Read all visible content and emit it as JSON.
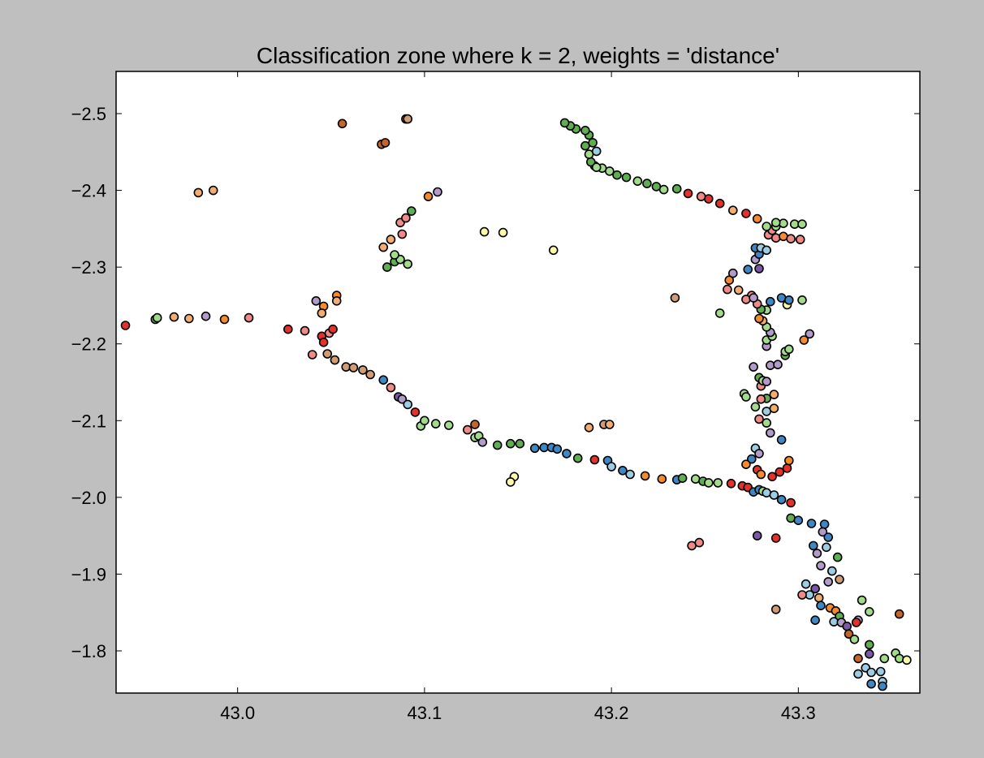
{
  "chart_data": {
    "type": "scatter",
    "title": "Classification zone where k = 2, weights = 'distance'",
    "xlabel": "",
    "ylabel": "",
    "xlim": [
      42.935,
      43.365
    ],
    "ylim": [
      -2.555,
      -1.745
    ],
    "y_inverted": true,
    "grid": false,
    "x_ticks": [
      "43.0",
      "43.1",
      "43.2",
      "43.3"
    ],
    "x_tick_values": [
      43.0,
      43.1,
      43.2,
      43.3
    ],
    "y_ticks": [
      "−2.5",
      "−2.4",
      "−2.3",
      "−2.2",
      "−2.1",
      "−2.0",
      "−1.9",
      "−1.8"
    ],
    "y_tick_values": [
      -2.5,
      -2.4,
      -2.3,
      -2.2,
      -2.1,
      -2.0,
      -1.9,
      -1.8
    ],
    "colors": {
      "r": "#e4312c",
      "o": "#f58b2e",
      "br": "#c4662c",
      "pk": "#f08a88",
      "pe": "#f4ad6e",
      "y": "#fdfba8",
      "lg": "#a3db8d",
      "g": "#5fae52",
      "lb": "#9ccde3",
      "b": "#3f87c2",
      "p": "#7b58a4",
      "lp": "#b39bc9",
      "tn": "#cf9c75"
    },
    "points": [
      [
        42.94,
        -2.224,
        "r"
      ],
      [
        42.956,
        -2.232,
        "g"
      ],
      [
        42.957,
        -2.234,
        "lg"
      ],
      [
        42.966,
        -2.235,
        "pe"
      ],
      [
        42.974,
        -2.233,
        "pe"
      ],
      [
        42.983,
        -2.236,
        "lp"
      ],
      [
        42.993,
        -2.232,
        "o"
      ],
      [
        43.006,
        -2.234,
        "pk"
      ],
      [
        43.027,
        -2.219,
        "r"
      ],
      [
        43.036,
        -2.217,
        "pk"
      ],
      [
        43.045,
        -2.21,
        "r"
      ],
      [
        43.049,
        -2.214,
        "pk"
      ],
      [
        43.051,
        -2.219,
        "r"
      ],
      [
        43.046,
        -2.202,
        "r"
      ],
      [
        43.04,
        -2.186,
        "pk"
      ],
      [
        43.048,
        -2.187,
        "tn"
      ],
      [
        43.052,
        -2.179,
        "tn"
      ],
      [
        43.058,
        -2.17,
        "tn"
      ],
      [
        43.062,
        -2.169,
        "tn"
      ],
      [
        43.067,
        -2.166,
        "tn"
      ],
      [
        43.071,
        -2.16,
        "tn"
      ],
      [
        43.078,
        -2.153,
        "b"
      ],
      [
        43.082,
        -2.143,
        "pk"
      ],
      [
        43.086,
        -2.131,
        "p"
      ],
      [
        43.088,
        -2.128,
        "lp"
      ],
      [
        43.091,
        -2.121,
        "lb"
      ],
      [
        43.095,
        -2.111,
        "r"
      ],
      [
        43.098,
        -2.093,
        "lg"
      ],
      [
        43.1,
        -2.1,
        "lg"
      ],
      [
        43.106,
        -2.096,
        "lg"
      ],
      [
        43.113,
        -2.094,
        "lg"
      ],
      [
        43.123,
        -2.088,
        "pk"
      ],
      [
        43.127,
        -2.095,
        "br"
      ],
      [
        43.127,
        -2.078,
        "lg"
      ],
      [
        43.129,
        -2.08,
        "lg"
      ],
      [
        43.131,
        -2.072,
        "lp"
      ],
      [
        43.139,
        -2.068,
        "g"
      ],
      [
        43.146,
        -2.07,
        "g"
      ],
      [
        43.151,
        -2.07,
        "g"
      ],
      [
        43.159,
        -2.064,
        "b"
      ],
      [
        43.164,
        -2.065,
        "b"
      ],
      [
        43.168,
        -2.065,
        "b"
      ],
      [
        43.171,
        -2.063,
        "b"
      ],
      [
        43.176,
        -2.057,
        "b"
      ],
      [
        43.182,
        -2.051,
        "g"
      ],
      [
        43.191,
        -2.049,
        "r"
      ],
      [
        43.198,
        -2.048,
        "b"
      ],
      [
        43.2,
        -2.04,
        "lb"
      ],
      [
        43.206,
        -2.035,
        "b"
      ],
      [
        43.21,
        -2.03,
        "lb"
      ],
      [
        43.218,
        -2.028,
        "o"
      ],
      [
        43.227,
        -2.024,
        "o"
      ],
      [
        43.235,
        -2.023,
        "b"
      ],
      [
        43.238,
        -2.025,
        "g"
      ],
      [
        43.245,
        -2.024,
        "lg"
      ],
      [
        43.249,
        -2.021,
        "g"
      ],
      [
        43.252,
        -2.019,
        "lg"
      ],
      [
        43.257,
        -2.019,
        "lg"
      ],
      [
        43.264,
        -2.018,
        "r"
      ],
      [
        43.27,
        -2.015,
        "r"
      ],
      [
        43.273,
        -2.013,
        "r"
      ],
      [
        43.276,
        -2.007,
        "b"
      ],
      [
        43.279,
        -2.01,
        "b"
      ],
      [
        43.281,
        -2.008,
        "lg"
      ],
      [
        43.283,
        -2.006,
        "lb"
      ],
      [
        43.287,
        -2.003,
        "lb"
      ],
      [
        43.291,
        -1.997,
        "b"
      ],
      [
        43.296,
        -1.993,
        "r"
      ],
      [
        43.296,
        -1.973,
        "g"
      ],
      [
        43.3,
        -1.97,
        "b"
      ],
      [
        43.307,
        -1.966,
        "b"
      ],
      [
        43.314,
        -1.965,
        "b"
      ],
      [
        43.313,
        -1.955,
        "lp"
      ],
      [
        43.316,
        -1.948,
        "b"
      ],
      [
        43.308,
        -1.937,
        "b"
      ],
      [
        43.315,
        -1.935,
        "lb"
      ],
      [
        43.31,
        -1.927,
        "lp"
      ],
      [
        43.321,
        -1.922,
        "g"
      ],
      [
        43.312,
        -1.911,
        "lp"
      ],
      [
        43.318,
        -1.904,
        "lb"
      ],
      [
        43.322,
        -1.893,
        "tn"
      ],
      [
        43.316,
        -1.89,
        "lp"
      ],
      [
        43.304,
        -1.887,
        "lb"
      ],
      [
        43.309,
        -1.881,
        "p"
      ],
      [
        43.306,
        -1.873,
        "lb"
      ],
      [
        43.311,
        -1.869,
        "pe"
      ],
      [
        43.302,
        -1.873,
        "pk"
      ],
      [
        43.312,
        -1.859,
        "b"
      ],
      [
        43.317,
        -1.856,
        "o"
      ],
      [
        43.32,
        -1.852,
        "o"
      ],
      [
        43.322,
        -1.845,
        "g"
      ],
      [
        43.309,
        -1.84,
        "b"
      ],
      [
        43.319,
        -1.838,
        "lb"
      ],
      [
        43.323,
        -1.837,
        "lp"
      ],
      [
        43.326,
        -1.832,
        "p"
      ],
      [
        43.332,
        -1.84,
        "lp"
      ],
      [
        43.327,
        -1.822,
        "br"
      ],
      [
        43.33,
        -1.815,
        "lg"
      ],
      [
        43.338,
        -1.808,
        "g"
      ],
      [
        43.338,
        -1.796,
        "p"
      ],
      [
        43.332,
        -1.79,
        "br"
      ],
      [
        43.336,
        -1.778,
        "lb"
      ],
      [
        43.339,
        -1.772,
        "lb"
      ],
      [
        43.344,
        -1.773,
        "lb"
      ],
      [
        43.332,
        -1.77,
        "lb"
      ],
      [
        43.345,
        -1.76,
        "lb"
      ],
      [
        43.345,
        -1.754,
        "b"
      ],
      [
        43.339,
        -1.757,
        "b"
      ],
      [
        43.346,
        -1.79,
        "lg"
      ],
      [
        43.352,
        -1.797,
        "lg"
      ],
      [
        43.354,
        -1.79,
        "lg"
      ],
      [
        43.358,
        -1.788,
        "y"
      ],
      [
        43.354,
        -1.848,
        "br"
      ],
      [
        43.331,
        -1.837,
        "r"
      ],
      [
        43.334,
        -1.866,
        "lg"
      ],
      [
        43.338,
        -1.851,
        "lg"
      ],
      [
        43.288,
        -1.854,
        "tn"
      ],
      [
        43.243,
        -1.937,
        "pk"
      ],
      [
        43.247,
        -1.941,
        "pk"
      ],
      [
        43.278,
        -1.95,
        "p"
      ],
      [
        43.288,
        -1.947,
        "r"
      ],
      [
        43.277,
        -2.064,
        "lb"
      ],
      [
        43.275,
        -2.05,
        "b"
      ],
      [
        43.272,
        -2.043,
        "o"
      ],
      [
        43.278,
        -2.036,
        "r"
      ],
      [
        43.28,
        -2.03,
        "o"
      ],
      [
        43.286,
        -2.027,
        "r"
      ],
      [
        43.29,
        -2.033,
        "r"
      ],
      [
        43.294,
        -2.038,
        "r"
      ],
      [
        43.295,
        -2.048,
        "o"
      ],
      [
        43.279,
        -2.057,
        "lp"
      ],
      [
        43.285,
        -2.084,
        "lp"
      ],
      [
        43.291,
        -2.075,
        "b"
      ],
      [
        43.283,
        -2.097,
        "lg"
      ],
      [
        43.279,
        -2.102,
        "pk"
      ],
      [
        43.283,
        -2.112,
        "lb"
      ],
      [
        43.287,
        -2.116,
        "pe"
      ],
      [
        43.283,
        -2.129,
        "g"
      ],
      [
        43.28,
        -2.128,
        "pk"
      ],
      [
        43.28,
        -2.145,
        "pk"
      ],
      [
        43.287,
        -2.134,
        "pe"
      ],
      [
        43.271,
        -2.135,
        "lg"
      ],
      [
        43.272,
        -2.131,
        "lg"
      ],
      [
        43.277,
        -2.118,
        "lg"
      ],
      [
        43.279,
        -2.156,
        "g"
      ],
      [
        43.281,
        -2.152,
        "lg"
      ],
      [
        43.283,
        -2.151,
        "lp"
      ],
      [
        43.276,
        -2.17,
        "lp"
      ],
      [
        43.285,
        -2.172,
        "lp"
      ],
      [
        43.289,
        -2.173,
        "lp"
      ],
      [
        43.293,
        -2.185,
        "g"
      ],
      [
        43.293,
        -2.19,
        "lg"
      ],
      [
        43.295,
        -2.193,
        "lg"
      ],
      [
        43.303,
        -2.205,
        "o"
      ],
      [
        43.306,
        -2.213,
        "lp"
      ],
      [
        43.283,
        -2.197,
        "lp"
      ],
      [
        43.283,
        -2.205,
        "lg"
      ],
      [
        43.286,
        -2.21,
        "lg"
      ],
      [
        43.285,
        -2.215,
        "lp"
      ],
      [
        43.283,
        -2.222,
        "lg"
      ],
      [
        43.281,
        -2.23,
        "pe"
      ],
      [
        43.279,
        -2.233,
        "o"
      ],
      [
        43.283,
        -2.244,
        "lg"
      ],
      [
        43.28,
        -2.245,
        "g"
      ],
      [
        43.278,
        -2.252,
        "pk"
      ],
      [
        43.275,
        -2.263,
        "pk"
      ],
      [
        43.272,
        -2.258,
        "pk"
      ],
      [
        43.268,
        -2.27,
        "pe"
      ],
      [
        43.285,
        -2.255,
        "b"
      ],
      [
        43.291,
        -2.26,
        "b"
      ],
      [
        43.294,
        -2.251,
        "y"
      ],
      [
        43.302,
        -2.257,
        "lg"
      ],
      [
        43.295,
        -2.257,
        "b"
      ],
      [
        43.263,
        -2.283,
        "o"
      ],
      [
        43.265,
        -2.292,
        "lp"
      ],
      [
        43.273,
        -2.297,
        "b"
      ],
      [
        43.262,
        -2.271,
        "pk"
      ],
      [
        43.258,
        -2.24,
        "lg"
      ],
      [
        43.234,
        -2.26,
        "tn"
      ],
      [
        43.276,
        -2.26,
        "lp"
      ],
      [
        43.279,
        -2.298,
        "p"
      ],
      [
        43.277,
        -2.31,
        "lp"
      ],
      [
        43.279,
        -2.317,
        "b"
      ],
      [
        43.277,
        -2.325,
        "b"
      ],
      [
        43.28,
        -2.325,
        "lb"
      ],
      [
        43.283,
        -2.322,
        "lb"
      ],
      [
        43.284,
        -2.342,
        "pk"
      ],
      [
        43.288,
        -2.338,
        "pk"
      ],
      [
        43.292,
        -2.34,
        "o"
      ],
      [
        43.296,
        -2.337,
        "pk"
      ],
      [
        43.301,
        -2.336,
        "pk"
      ],
      [
        43.286,
        -2.348,
        "pk"
      ],
      [
        43.283,
        -2.353,
        "lg"
      ],
      [
        43.288,
        -2.353,
        "lg"
      ],
      [
        43.292,
        -2.357,
        "lg"
      ],
      [
        43.298,
        -2.356,
        "lg"
      ],
      [
        43.302,
        -2.356,
        "lg"
      ],
      [
        43.288,
        -2.358,
        "lg"
      ],
      [
        43.278,
        -2.363,
        "o"
      ],
      [
        43.272,
        -2.37,
        "r"
      ],
      [
        43.265,
        -2.374,
        "pe"
      ],
      [
        43.258,
        -2.383,
        "r"
      ],
      [
        43.252,
        -2.389,
        "r"
      ],
      [
        43.248,
        -2.392,
        "pk"
      ],
      [
        43.241,
        -2.396,
        "r"
      ],
      [
        43.235,
        -2.402,
        "g"
      ],
      [
        43.228,
        -2.401,
        "lg"
      ],
      [
        43.224,
        -2.405,
        "g"
      ],
      [
        43.219,
        -2.409,
        "g"
      ],
      [
        43.214,
        -2.412,
        "lg"
      ],
      [
        43.208,
        -2.417,
        "g"
      ],
      [
        43.203,
        -2.42,
        "g"
      ],
      [
        43.199,
        -2.425,
        "lg"
      ],
      [
        43.195,
        -2.429,
        "lg"
      ],
      [
        43.191,
        -2.432,
        "g"
      ],
      [
        43.189,
        -2.437,
        "g"
      ],
      [
        43.192,
        -2.43,
        "lg"
      ],
      [
        43.188,
        -2.447,
        "lg"
      ],
      [
        43.192,
        -2.451,
        "lb"
      ],
      [
        43.186,
        -2.458,
        "g"
      ],
      [
        43.19,
        -2.462,
        "g"
      ],
      [
        43.188,
        -2.472,
        "g"
      ],
      [
        43.186,
        -2.478,
        "g"
      ],
      [
        43.181,
        -2.48,
        "g"
      ],
      [
        43.178,
        -2.484,
        "g"
      ],
      [
        43.175,
        -2.488,
        "g"
      ],
      [
        43.08,
        -2.3,
        "g"
      ],
      [
        43.084,
        -2.307,
        "g"
      ],
      [
        43.087,
        -2.31,
        "lg"
      ],
      [
        43.091,
        -2.304,
        "lg"
      ],
      [
        43.084,
        -2.316,
        "lg"
      ],
      [
        43.078,
        -2.326,
        "pe"
      ],
      [
        43.082,
        -2.336,
        "pe"
      ],
      [
        43.088,
        -2.343,
        "pk"
      ],
      [
        43.087,
        -2.358,
        "pk"
      ],
      [
        43.09,
        -2.364,
        "pk"
      ],
      [
        43.093,
        -2.373,
        "g"
      ],
      [
        43.102,
        -2.392,
        "o"
      ],
      [
        43.107,
        -2.398,
        "lp"
      ],
      [
        43.077,
        -2.46,
        "br"
      ],
      [
        43.079,
        -2.462,
        "br"
      ],
      [
        43.09,
        -2.493,
        "br"
      ],
      [
        43.091,
        -2.493,
        "tn"
      ],
      [
        43.056,
        -2.487,
        "br"
      ],
      [
        42.979,
        -2.397,
        "pe"
      ],
      [
        42.987,
        -2.4,
        "pe"
      ],
      [
        43.132,
        -2.346,
        "y"
      ],
      [
        43.142,
        -2.345,
        "y"
      ],
      [
        43.169,
        -2.322,
        "y"
      ],
      [
        43.053,
        -2.263,
        "o"
      ],
      [
        43.053,
        -2.256,
        "pe"
      ],
      [
        43.046,
        -2.249,
        "o"
      ],
      [
        43.045,
        -2.24,
        "pe"
      ],
      [
        43.042,
        -2.256,
        "lp"
      ],
      [
        43.148,
        -2.027,
        "y"
      ],
      [
        43.146,
        -2.02,
        "y"
      ],
      [
        43.188,
        -2.091,
        "pe"
      ],
      [
        43.196,
        -2.095,
        "tn"
      ],
      [
        43.199,
        -2.095,
        "pe"
      ]
    ]
  }
}
